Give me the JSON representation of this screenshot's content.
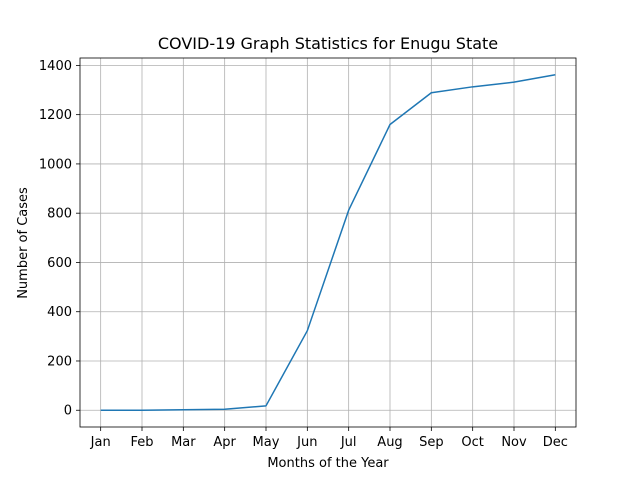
{
  "chart_data": {
    "type": "line",
    "title": "COVID-19 Graph Statistics for Enugu State",
    "xlabel": "Months of the Year",
    "ylabel": "Number of Cases",
    "categories": [
      "Jan",
      "Feb",
      "Mar",
      "Apr",
      "May",
      "Jun",
      "Jul",
      "Aug",
      "Sep",
      "Oct",
      "Nov",
      "Dec"
    ],
    "series": [
      {
        "values": [
          0,
          0,
          2,
          4,
          18,
          323,
          812,
          1160,
          1289,
          1313,
          1332,
          1362
        ],
        "color": "#1f77b4"
      }
    ],
    "yticks": [
      0,
      200,
      400,
      600,
      800,
      1000,
      1200,
      1400
    ],
    "ylim": [
      -68,
      1430
    ],
    "grid": true,
    "legend": "none"
  }
}
